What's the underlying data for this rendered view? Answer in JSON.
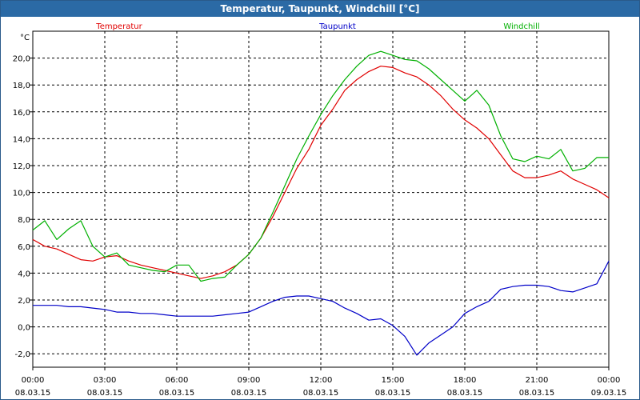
{
  "window": {
    "title": "Temperatur, Taupunkt, Windchill [°C]"
  },
  "colors": {
    "temperatur": "#e00000",
    "taupunkt": "#0000c8",
    "windchill": "#00b000",
    "titlebar": "#2b6aa5"
  },
  "chart_data": {
    "type": "line",
    "title": "Temperatur, Taupunkt, Windchill [°C]",
    "ylabel": "°C",
    "xlabel": "",
    "ylim": [
      -3,
      22
    ],
    "xlim_hours": [
      0,
      24
    ],
    "grid": true,
    "legend_placement": "top",
    "y_ticks": [
      -2.0,
      0.0,
      2.0,
      4.0,
      6.0,
      8.0,
      10.0,
      12.0,
      14.0,
      16.0,
      18.0,
      20.0
    ],
    "y_tick_labels": [
      "-2,0",
      "0,0",
      "2,0",
      "4,0",
      "6,0",
      "8,0",
      "10,0",
      "12,0",
      "14,0",
      "16,0",
      "18,0",
      "20,0"
    ],
    "x_ticks": [
      {
        "time": "00:00",
        "date": "08.03.15"
      },
      {
        "time": "03:00",
        "date": "08.03.15"
      },
      {
        "time": "06:00",
        "date": "08.03.15"
      },
      {
        "time": "09:00",
        "date": "08.03.15"
      },
      {
        "time": "12:00",
        "date": "08.03.15"
      },
      {
        "time": "15:00",
        "date": "08.03.15"
      },
      {
        "time": "18:00",
        "date": "08.03.15"
      },
      {
        "time": "21:00",
        "date": "08.03.15"
      },
      {
        "time": "00:00",
        "date": "09.03.15"
      }
    ],
    "x_hours": [
      0,
      0.5,
      1,
      1.5,
      2,
      2.5,
      3,
      3.5,
      4,
      4.5,
      5,
      5.5,
      6,
      6.5,
      7,
      7.5,
      8,
      8.5,
      9,
      9.5,
      10,
      10.5,
      11,
      11.5,
      12,
      12.5,
      13,
      13.5,
      14,
      14.5,
      15,
      15.5,
      16,
      16.5,
      17,
      17.5,
      18,
      18.5,
      19,
      19.5,
      20,
      20.5,
      21,
      21.5,
      22,
      22.5,
      23,
      23.5,
      24
    ],
    "series": [
      {
        "name": "Temperatur",
        "color": "#e00000",
        "values": [
          6.5,
          6.0,
          5.8,
          5.4,
          5.0,
          4.9,
          5.2,
          5.3,
          4.9,
          4.6,
          4.4,
          4.2,
          4.0,
          3.8,
          3.6,
          3.8,
          4.1,
          4.6,
          5.4,
          6.6,
          8.2,
          10.0,
          11.8,
          13.2,
          15.0,
          16.2,
          17.6,
          18.4,
          19.0,
          19.4,
          19.3,
          18.9,
          18.6,
          18.0,
          17.2,
          16.2,
          15.4,
          14.8,
          14.0,
          12.8,
          11.6,
          11.1,
          11.1,
          11.3,
          11.6,
          11.0,
          10.6,
          10.2,
          9.6
        ]
      },
      {
        "name": "Taupunkt",
        "color": "#0000c8",
        "values": [
          1.6,
          1.6,
          1.6,
          1.5,
          1.5,
          1.4,
          1.3,
          1.1,
          1.1,
          1.0,
          1.0,
          0.9,
          0.8,
          0.8,
          0.8,
          0.8,
          0.9,
          1.0,
          1.1,
          1.5,
          1.9,
          2.2,
          2.3,
          2.3,
          2.1,
          1.9,
          1.4,
          1.0,
          0.5,
          0.6,
          0.1,
          -0.7,
          -2.1,
          -1.2,
          -0.6,
          0.0,
          1.0,
          1.5,
          1.9,
          2.8,
          3.0,
          3.1,
          3.1,
          3.0,
          2.7,
          2.6,
          2.9,
          3.2,
          4.9
        ]
      },
      {
        "name": "Windchill",
        "color": "#00b000",
        "values": [
          7.2,
          7.9,
          6.5,
          7.3,
          7.9,
          6.0,
          5.2,
          5.5,
          4.6,
          4.4,
          4.2,
          4.1,
          4.6,
          4.6,
          3.4,
          3.6,
          3.7,
          4.6,
          5.4,
          6.6,
          8.5,
          10.5,
          12.5,
          14.2,
          15.8,
          17.2,
          18.4,
          19.4,
          20.2,
          20.5,
          20.2,
          19.9,
          19.8,
          19.2,
          18.4,
          17.6,
          16.8,
          17.6,
          16.5,
          14.2,
          12.5,
          12.3,
          12.7,
          12.5,
          13.2,
          11.6,
          11.8,
          12.6,
          12.6
        ]
      }
    ]
  }
}
